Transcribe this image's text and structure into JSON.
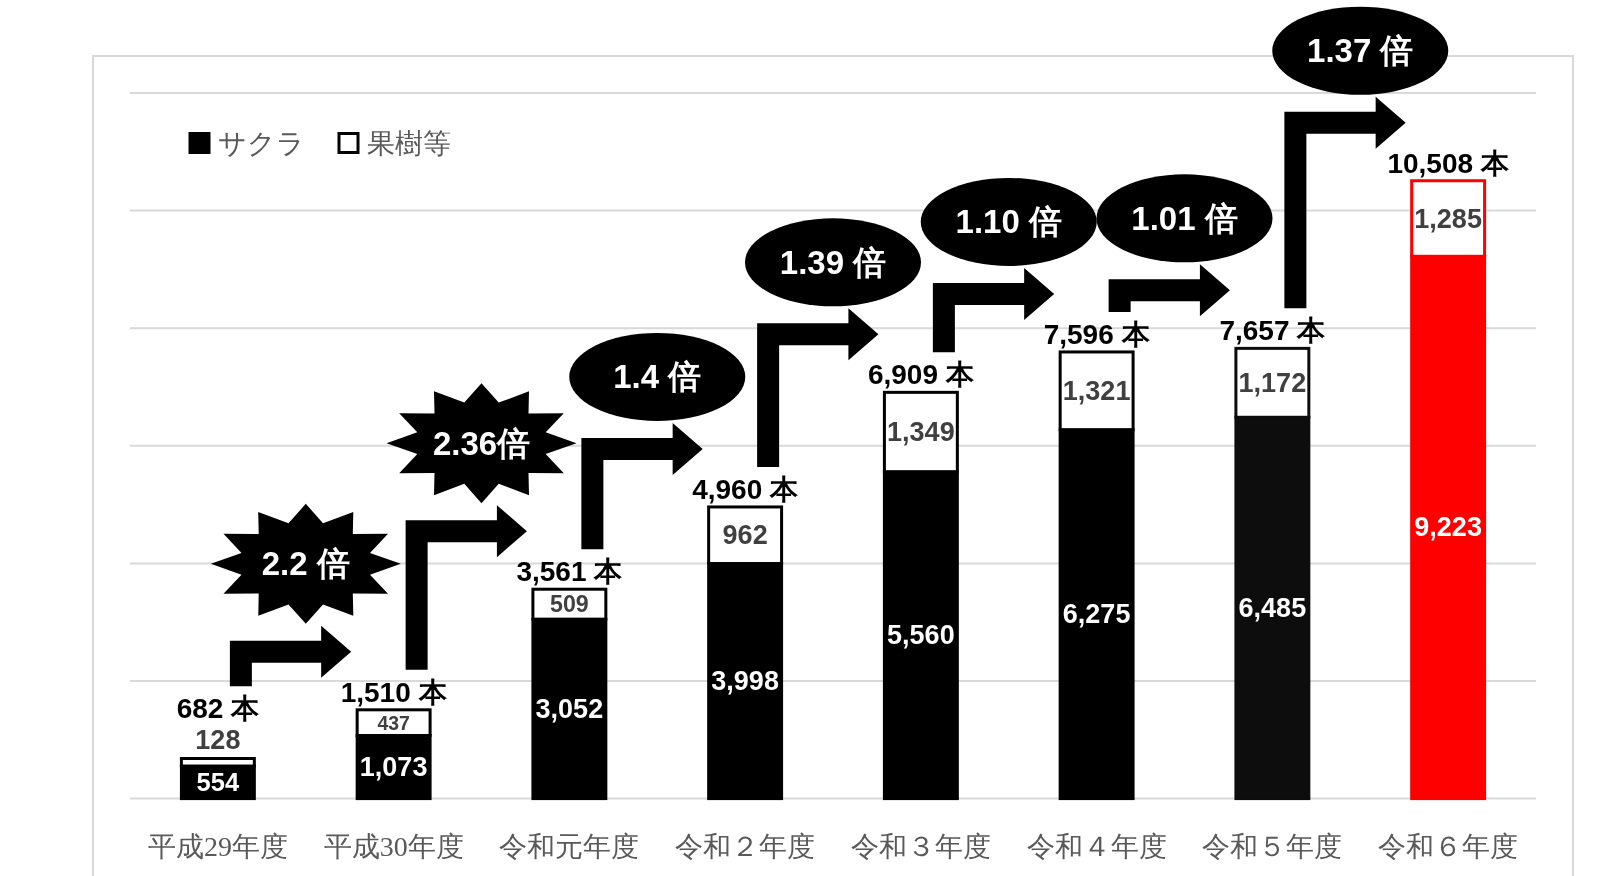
{
  "chart_data": {
    "type": "bar",
    "stacked": true,
    "categories": [
      "平成29年度",
      "平成30年度",
      "令和元年度",
      "令和２年度",
      "令和３年度",
      "令和４年度",
      "令和５年度",
      "令和６年度"
    ],
    "series": [
      {
        "name": "サクラ",
        "color": "#000000",
        "colors": [
          "#000000",
          "#000000",
          "#000000",
          "#000000",
          "#000000",
          "#000000",
          "#0d0d0d",
          "#ff0000"
        ],
        "values": [
          554,
          1073,
          3052,
          3998,
          5560,
          6275,
          6485,
          9223
        ],
        "value_labels": [
          "554",
          "1,073",
          "3,052",
          "3,998",
          "5,560",
          "6,275",
          "6,485",
          "9,223"
        ]
      },
      {
        "name": "果樹等",
        "color": "#ffffff",
        "values": [
          128,
          437,
          509,
          962,
          1349,
          1321,
          1172,
          1285
        ],
        "value_labels": [
          "128",
          "437",
          "509",
          "962",
          "1,349",
          "1,321",
          "1,172",
          "1,285"
        ]
      }
    ],
    "totals": [
      "682 本",
      "1,510 本",
      "3,561 本",
      "4,960 本",
      "6,909 本",
      "7,596 本",
      "7,657 本",
      "10,508 本"
    ],
    "annotations": [
      "2.2 倍",
      "2.36倍",
      "1.4 倍",
      "1.39 倍",
      "1.10 倍",
      "1.01 倍",
      "1.37 倍"
    ],
    "ylim": [
      0,
      12000
    ],
    "yticks": [
      {
        "value": 0,
        "label": null
      },
      {
        "value": 2000,
        "label": null
      },
      {
        "value": 4000,
        "label": null
      },
      {
        "value": 6000,
        "label": null
      },
      {
        "value": 8000,
        "label": null
      },
      {
        "value": 10000,
        "label": null
      },
      {
        "value": 12000,
        "label": null
      }
    ],
    "grid": "y",
    "legend": "top left",
    "tick_labels": "x"
  }
}
